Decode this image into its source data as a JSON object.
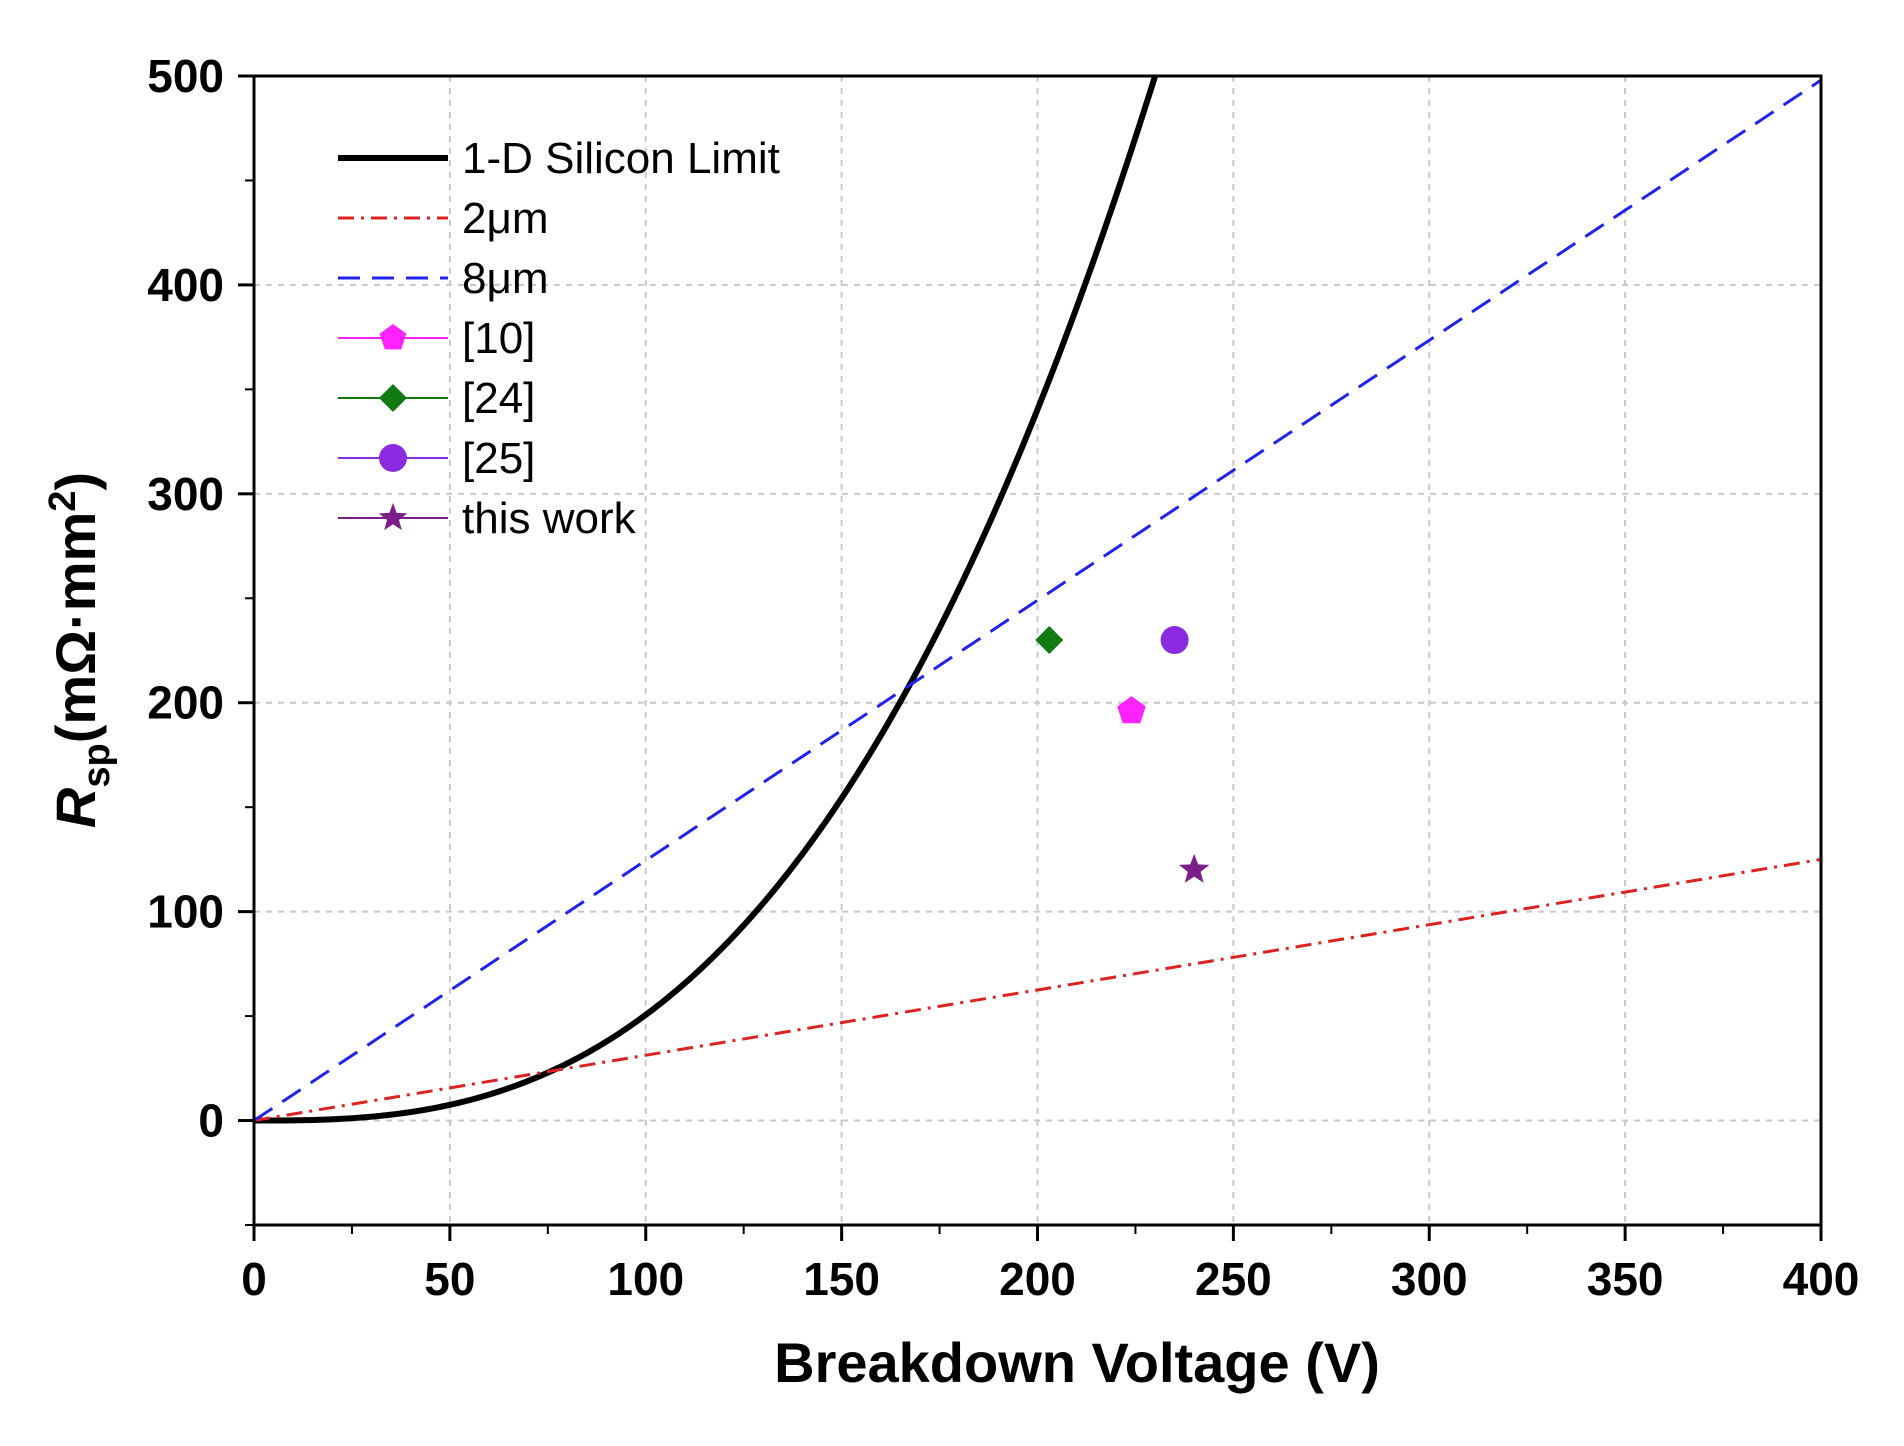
{
  "chart_data": {
    "type": "line",
    "xlabel": "Breakdown Voltage (V)",
    "ylabel": {
      "main": "R",
      "sub": "sp",
      "unit_prefix": "(mΩ·mm",
      "sup": "2",
      "unit_suffix": ")"
    },
    "xlim": [
      0,
      400
    ],
    "ylim": [
      -50,
      500
    ],
    "xticks": [
      0,
      50,
      100,
      150,
      200,
      250,
      300,
      350,
      400
    ],
    "yticks": [
      0,
      100,
      200,
      300,
      400,
      500
    ],
    "xtick_labels": [
      "0",
      "50",
      "100",
      "150",
      "200",
      "250",
      "300",
      "350",
      "400"
    ],
    "ytick_labels": [
      "0",
      "100",
      "200",
      "300",
      "400",
      "500"
    ],
    "grid": true,
    "legend_position": "top-left",
    "series": [
      {
        "name": "1-D Silicon Limit",
        "kind": "power",
        "coef": 0.00016,
        "exponent": 2.75,
        "x_range": [
          0,
          400
        ],
        "color": "#000000",
        "style": "solid"
      },
      {
        "name": "2μm",
        "kind": "linear",
        "x": [
          0,
          400
        ],
        "y": [
          0,
          125
        ],
        "color": "#dd2222",
        "style": "dashdot"
      },
      {
        "name": "8μm",
        "kind": "linear",
        "x": [
          0,
          400
        ],
        "y": [
          0,
          498
        ],
        "color": "#2222ee",
        "style": "dashed"
      },
      {
        "name": "[10]",
        "kind": "point",
        "x": 224,
        "y": 196,
        "color": "#ff22ff",
        "marker": "pentagon"
      },
      {
        "name": "[24]",
        "kind": "point",
        "x": 203,
        "y": 230,
        "color": "#117a11",
        "marker": "diamond"
      },
      {
        "name": "[25]",
        "kind": "point",
        "x": 235,
        "y": 230,
        "color": "#8a2be2",
        "marker": "circle"
      },
      {
        "name": "this work",
        "kind": "point",
        "x": 240,
        "y": 120,
        "color": "#7a1f8a",
        "marker": "star"
      }
    ]
  }
}
